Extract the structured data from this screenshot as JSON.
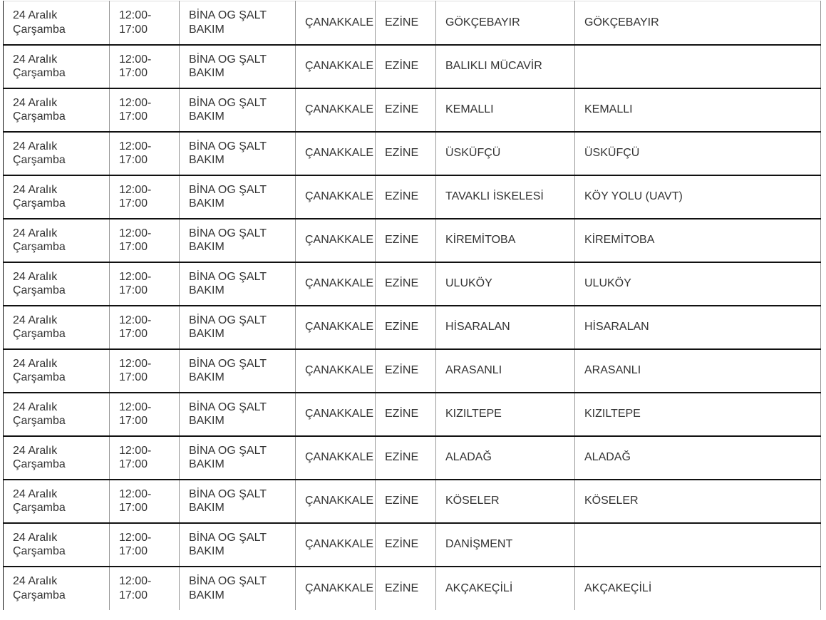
{
  "table": {
    "rows": [
      [
        "24 Aralık Çarşamba",
        "12:00-17:00",
        "BİNA OG ŞALT BAKIM",
        "ÇANAKKALE",
        "EZİNE",
        "GÖKÇEBAYIR",
        "GÖKÇEBAYIR"
      ],
      [
        "24 Aralık Çarşamba",
        "12:00-17:00",
        "BİNA OG ŞALT BAKIM",
        "ÇANAKKALE",
        "EZİNE",
        "BALIKLI MÜCAVİR",
        ""
      ],
      [
        "24 Aralık Çarşamba",
        "12:00-17:00",
        "BİNA OG ŞALT BAKIM",
        "ÇANAKKALE",
        "EZİNE",
        "KEMALLI",
        "KEMALLI"
      ],
      [
        "24 Aralık Çarşamba",
        "12:00-17:00",
        "BİNA OG ŞALT BAKIM",
        "ÇANAKKALE",
        "EZİNE",
        "ÜSKÜFÇÜ",
        "ÜSKÜFÇÜ"
      ],
      [
        "24 Aralık Çarşamba",
        "12:00-17:00",
        "BİNA OG ŞALT BAKIM",
        "ÇANAKKALE",
        "EZİNE",
        "TAVAKLI İSKELESİ",
        "KÖY YOLU (UAVT)"
      ],
      [
        "24 Aralık Çarşamba",
        "12:00-17:00",
        "BİNA OG ŞALT BAKIM",
        "ÇANAKKALE",
        "EZİNE",
        "KİREMİTOBA",
        "KİREMİTOBA"
      ],
      [
        "24 Aralık Çarşamba",
        "12:00-17:00",
        "BİNA OG ŞALT BAKIM",
        "ÇANAKKALE",
        "EZİNE",
        "ULUKÖY",
        "ULUKÖY"
      ],
      [
        "24 Aralık Çarşamba",
        "12:00-17:00",
        "BİNA OG ŞALT BAKIM",
        "ÇANAKKALE",
        "EZİNE",
        "HİSARALAN",
        "HİSARALAN"
      ],
      [
        "24 Aralık Çarşamba",
        "12:00-17:00",
        "BİNA OG ŞALT BAKIM",
        "ÇANAKKALE",
        "EZİNE",
        "ARASANLI",
        "ARASANLI"
      ],
      [
        "24 Aralık Çarşamba",
        "12:00-17:00",
        "BİNA OG ŞALT BAKIM",
        "ÇANAKKALE",
        "EZİNE",
        "KIZILTEPE",
        "KIZILTEPE"
      ],
      [
        "24 Aralık Çarşamba",
        "12:00-17:00",
        "BİNA OG ŞALT BAKIM",
        "ÇANAKKALE",
        "EZİNE",
        "ALADAĞ",
        "ALADAĞ"
      ],
      [
        "24 Aralık Çarşamba",
        "12:00-17:00",
        "BİNA OG ŞALT BAKIM",
        "ÇANAKKALE",
        "EZİNE",
        "KÖSELER",
        "KÖSELER"
      ],
      [
        "24 Aralık Çarşamba",
        "12:00-17:00",
        "BİNA OG ŞALT BAKIM",
        "ÇANAKKALE",
        "EZİNE",
        "DANİŞMENT",
        ""
      ],
      [
        "24 Aralık Çarşamba",
        "12:00-17:00",
        "BİNA OG ŞALT BAKIM",
        "ÇANAKKALE",
        "EZİNE",
        "AKÇAKEÇİLİ",
        "AKÇAKEÇİLİ"
      ]
    ]
  }
}
